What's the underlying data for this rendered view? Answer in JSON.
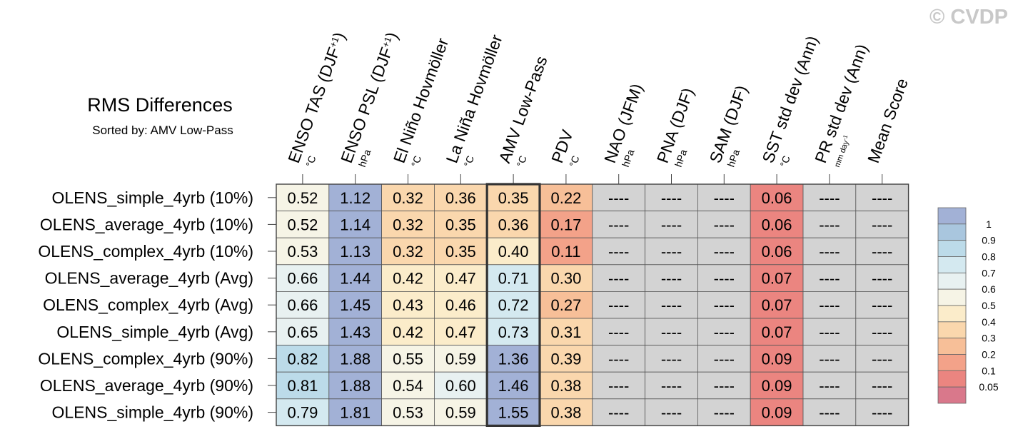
{
  "copyright": "© CVDP",
  "chart_data": {
    "type": "table",
    "title": "RMS Differences",
    "subtitle": "Sorted by: AMV Low-Pass",
    "missing_label": "----",
    "columns": [
      {
        "name": "ENSO TAS (DJF",
        "sup": "+1",
        "close": ")",
        "unit": "°C"
      },
      {
        "name": "ENSO PSL (DJF",
        "sup": "+1",
        "close": ")",
        "unit": "hPa"
      },
      {
        "name": "El Niño Hovmöller",
        "unit": "°C"
      },
      {
        "name": "La Niña Hovmöller",
        "unit": "°C"
      },
      {
        "name": "AMV Low-Pass",
        "unit": "°C"
      },
      {
        "name": "PDV",
        "unit": "°C"
      },
      {
        "name": "NAO (JFM)",
        "unit": "hPa"
      },
      {
        "name": "PNA (DJF)",
        "unit": "hPa"
      },
      {
        "name": "SAM (DJF)",
        "unit": "hPa"
      },
      {
        "name": "SST std dev (Ann)",
        "unit": "°C"
      },
      {
        "name": "PR std dev (Ann)",
        "unit": "mm day",
        "unit_sup": "-1"
      },
      {
        "name": "Mean Score",
        "unit": ""
      }
    ],
    "rows": [
      {
        "label": "OLENS_simple_4yrb (10%)",
        "values": [
          "0.52",
          "1.12",
          "0.32",
          "0.36",
          "0.35",
          "0.22",
          null,
          null,
          null,
          "0.06",
          null,
          null
        ]
      },
      {
        "label": "OLENS_average_4yrb (10%)",
        "values": [
          "0.52",
          "1.14",
          "0.32",
          "0.35",
          "0.36",
          "0.17",
          null,
          null,
          null,
          "0.06",
          null,
          null
        ]
      },
      {
        "label": "OLENS_complex_4yrb (10%)",
        "values": [
          "0.53",
          "1.13",
          "0.32",
          "0.35",
          "0.40",
          "0.11",
          null,
          null,
          null,
          "0.06",
          null,
          null
        ]
      },
      {
        "label": "OLENS_average_4yrb (Avg)",
        "values": [
          "0.66",
          "1.44",
          "0.42",
          "0.47",
          "0.71",
          "0.30",
          null,
          null,
          null,
          "0.07",
          null,
          null
        ]
      },
      {
        "label": "OLENS_complex_4yrb (Avg)",
        "values": [
          "0.66",
          "1.45",
          "0.43",
          "0.46",
          "0.72",
          "0.27",
          null,
          null,
          null,
          "0.07",
          null,
          null
        ]
      },
      {
        "label": "OLENS_simple_4yrb (Avg)",
        "values": [
          "0.65",
          "1.43",
          "0.42",
          "0.47",
          "0.73",
          "0.31",
          null,
          null,
          null,
          "0.07",
          null,
          null
        ]
      },
      {
        "label": "OLENS_complex_4yrb (90%)",
        "values": [
          "0.82",
          "1.88",
          "0.55",
          "0.59",
          "1.36",
          "0.39",
          null,
          null,
          null,
          "0.09",
          null,
          null
        ]
      },
      {
        "label": "OLENS_average_4yrb (90%)",
        "values": [
          "0.81",
          "1.88",
          "0.54",
          "0.60",
          "1.46",
          "0.38",
          null,
          null,
          null,
          "0.09",
          null,
          null
        ]
      },
      {
        "label": "OLENS_simple_4yrb (90%)",
        "values": [
          "0.79",
          "1.81",
          "0.53",
          "0.59",
          "1.55",
          "0.38",
          null,
          null,
          null,
          "0.09",
          null,
          null
        ]
      }
    ],
    "highlighted_column": "AMV Low-Pass",
    "colorbar": {
      "labels": [
        "1",
        "0.9",
        "0.8",
        "0.7",
        "0.6",
        "0.5",
        "0.4",
        "0.3",
        "0.2",
        "0.1",
        "0.05"
      ],
      "levels": [
        1,
        0.9,
        0.8,
        0.7,
        0.6,
        0.5,
        0.4,
        0.3,
        0.2,
        0.1,
        0.05
      ],
      "colors": [
        "#a2b1d6",
        "#a9c6de",
        "#bcdbe9",
        "#d4e9f0",
        "#e8f1f1",
        "#f6f4e6",
        "#fbecca",
        "#fad7ad",
        "#f7bf98",
        "#f3a289",
        "#eb8580",
        "#d9788b"
      ]
    },
    "missing_color": "#d3d3d3"
  }
}
